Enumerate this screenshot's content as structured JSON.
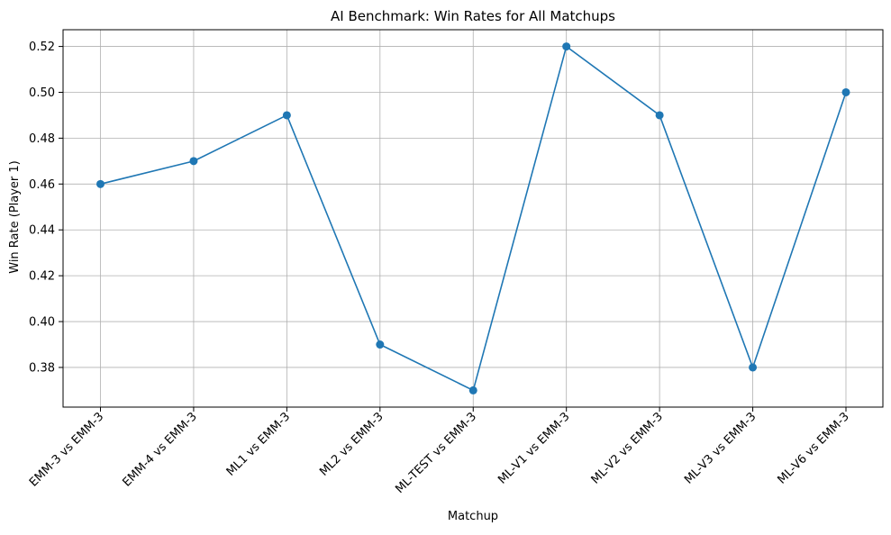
{
  "chart_data": {
    "type": "line",
    "title": "AI Benchmark: Win Rates for All Matchups",
    "xlabel": "Matchup",
    "ylabel": "Win Rate (Player 1)",
    "categories": [
      "EMM-3 vs EMM-3",
      "EMM-4 vs EMM-3",
      "ML1 vs EMM-3",
      "ML2 vs EMM-3",
      "ML-TEST vs EMM-3",
      "ML-V1 vs EMM-3",
      "ML-V2 vs EMM-3",
      "ML-V3 vs EMM-3",
      "ML-V6 vs EMM-3"
    ],
    "values": [
      0.46,
      0.47,
      0.49,
      0.39,
      0.37,
      0.52,
      0.49,
      0.38,
      0.5
    ],
    "ylim": [
      0.3627,
      0.5273
    ],
    "yticks": [
      "0.38",
      "0.40",
      "0.42",
      "0.44",
      "0.46",
      "0.48",
      "0.50",
      "0.52"
    ],
    "grid": true,
    "markers": true,
    "colors": {
      "line": "#1f77b4",
      "grid": "#b0b0b0",
      "axes": "#000000"
    }
  }
}
